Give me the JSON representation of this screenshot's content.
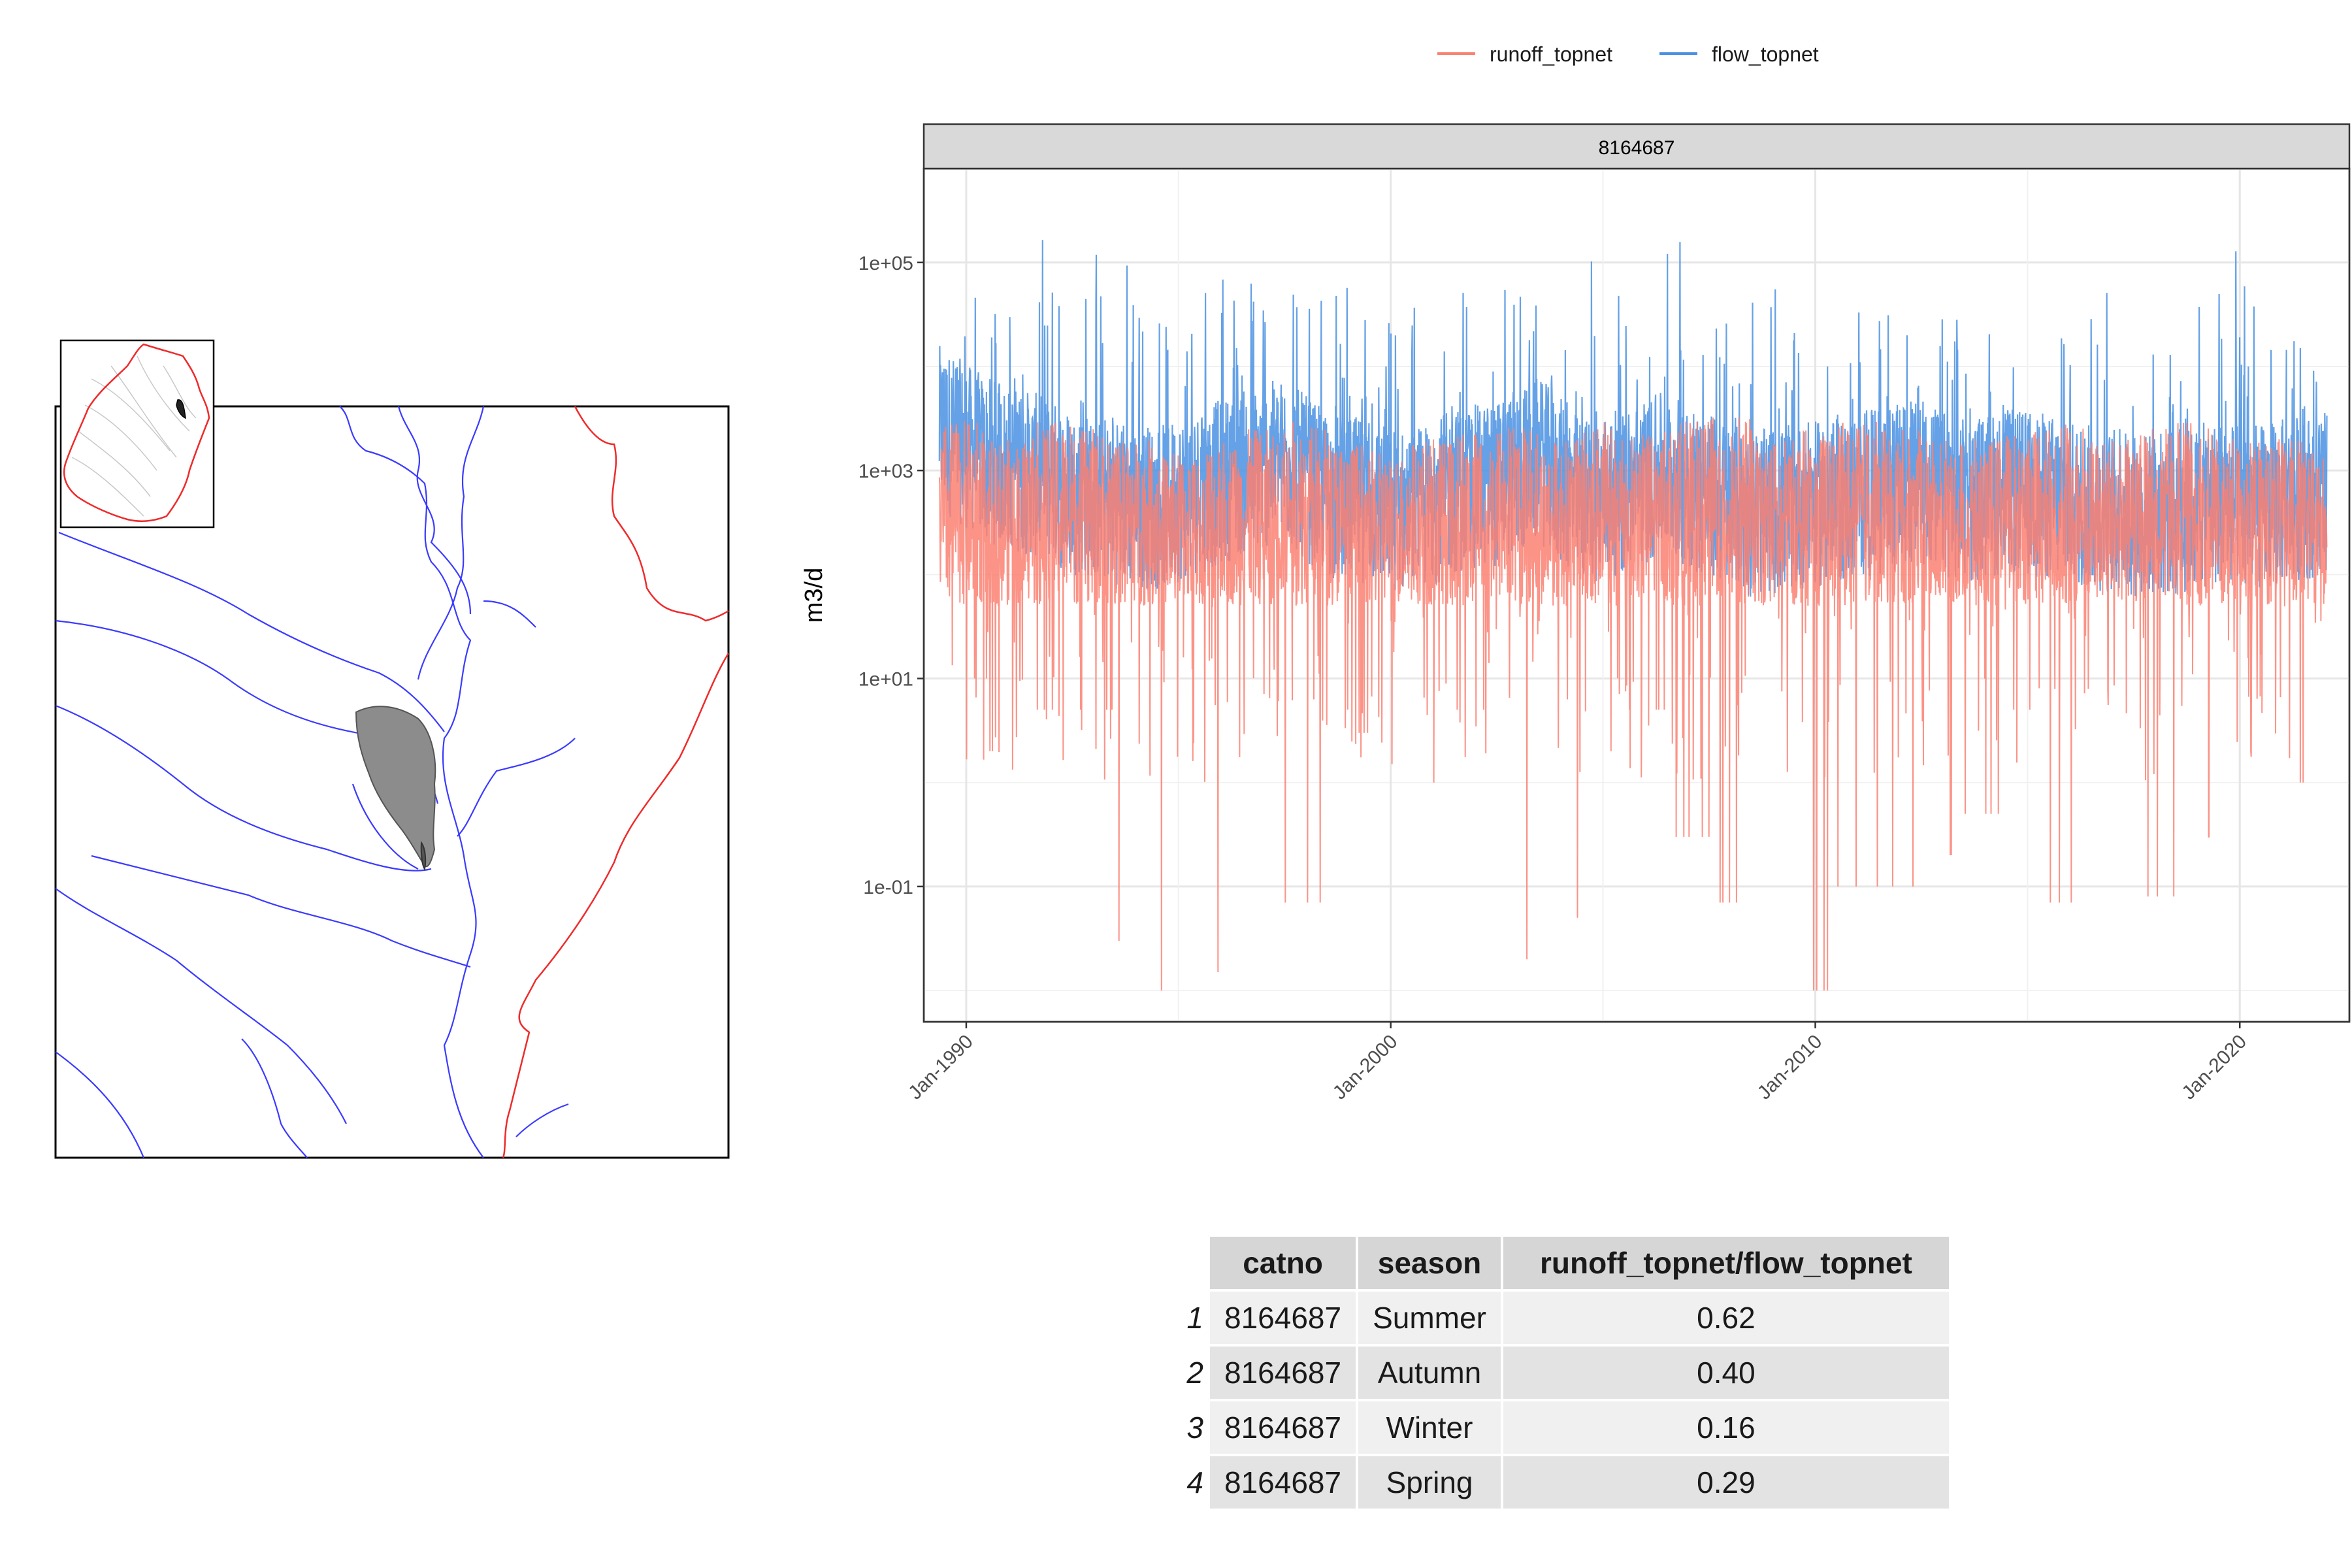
{
  "legend": {
    "items": [
      {
        "label": "runoff_topnet",
        "color": "#FA8072"
      },
      {
        "label": "flow_topnet",
        "color": "#4A90E2"
      }
    ]
  },
  "chart_data": {
    "type": "line",
    "panel_title": "8164687",
    "ylabel": "m3/d",
    "xlabel": "",
    "y_scale": "log10",
    "ylim": [
      0.005,
      800000
    ],
    "yticks": [
      {
        "value": 0.1,
        "label": "1e-01"
      },
      {
        "value": 10,
        "label": "1e+01"
      },
      {
        "value": 1000,
        "label": "1e+03"
      },
      {
        "value": 100000,
        "label": "1e+05"
      }
    ],
    "x_range": [
      "1989-01-01",
      "2022-08-01"
    ],
    "xticks": [
      {
        "value": "1990-01-01",
        "label": "Jan-1990"
      },
      {
        "value": "2000-01-01",
        "label": "Jan-2000"
      },
      {
        "value": "2010-01-01",
        "label": "Jan-2010"
      },
      {
        "value": "2020-01-01",
        "label": "Jan-2020"
      }
    ],
    "grid": true,
    "legend_position": "top",
    "series": [
      {
        "name": "flow_topnet",
        "color": "#4A90E2",
        "x": [
          "1989-06-01",
          "1990-07-01",
          "1991-07-01",
          "1992-07-01",
          "1993-07-01",
          "1994-07-01",
          "1995-07-01",
          "1996-07-01",
          "1997-07-01",
          "1998-07-01",
          "1999-07-01",
          "2000-07-01",
          "2001-07-01",
          "2002-07-01",
          "2003-07-01",
          "2004-07-01",
          "2005-07-01",
          "2006-07-01",
          "2007-07-01",
          "2008-07-01",
          "2009-07-01",
          "2010-07-01",
          "2011-07-01",
          "2012-07-01",
          "2013-07-01",
          "2014-07-01",
          "2015-07-01",
          "2016-07-01",
          "2017-07-01",
          "2018-07-01",
          "2019-07-01",
          "2020-07-01",
          "2021-07-01"
        ],
        "peak": [
          60000,
          80000,
          200000,
          150000,
          130000,
          50000,
          100000,
          80000,
          110000,
          60000,
          30000,
          50000,
          80000,
          90000,
          30000,
          150000,
          120000,
          170000,
          130000,
          70000,
          50000,
          90000,
          80000,
          30000,
          60000,
          40000,
          70000,
          60000,
          130000,
          110000,
          140000,
          40000,
          10000
        ],
        "trough": [
          400,
          200,
          150,
          100,
          80,
          70,
          100,
          150,
          200,
          90,
          80,
          60,
          100,
          120,
          200,
          80,
          100,
          150,
          90,
          60,
          70,
          80,
          100,
          120,
          80,
          100,
          90,
          70,
          60,
          60,
          80,
          70,
          90
        ]
      },
      {
        "name": "runoff_topnet",
        "color": "#FA8072",
        "x": [
          "1989-06-01",
          "1990-07-01",
          "1991-07-01",
          "1992-07-01",
          "1993-07-01",
          "1994-07-01",
          "1995-07-01",
          "1996-07-01",
          "1997-07-01",
          "1998-07-01",
          "1999-07-01",
          "2000-07-01",
          "2001-07-01",
          "2002-07-01",
          "2003-07-01",
          "2004-07-01",
          "2005-07-01",
          "2006-07-01",
          "2007-07-01",
          "2008-07-01",
          "2009-07-01",
          "2010-07-01",
          "2011-07-01",
          "2012-07-01",
          "2013-07-01",
          "2014-07-01",
          "2015-07-01",
          "2016-07-01",
          "2017-07-01",
          "2018-07-01",
          "2019-07-01",
          "2020-07-01",
          "2021-07-01"
        ],
        "peak": [
          3000,
          2000,
          3000,
          2500,
          2000,
          1500,
          2000,
          2500,
          3000,
          2000,
          1500,
          2000,
          2500,
          3000,
          2000,
          3000,
          2500,
          3000,
          3500,
          2000,
          2500,
          3000,
          2500,
          2000,
          2000,
          2500,
          3000,
          2000,
          2500,
          3000,
          2000,
          2000,
          1500
        ],
        "low": [
          10,
          2,
          5,
          5,
          0.03,
          0.01,
          0.015,
          0.5,
          0.07,
          3,
          5,
          1,
          5,
          0.02,
          0.05,
          2,
          5,
          0.3,
          0.07,
          0.2,
          0.01,
          0.1,
          0.1,
          0.2,
          0.5,
          5,
          0.07,
          0.1,
          0.08,
          0.3,
          2,
          1,
          0.05
        ]
      }
    ]
  },
  "map": {
    "main_region_label": "",
    "colors": {
      "rivers": "#3b3bff",
      "boundary": "#ee2b2b",
      "catchment": "#8c8c8c"
    }
  },
  "table": {
    "columns": [
      "catno",
      "season",
      "runoff_topnet/flow_topnet"
    ],
    "rows": [
      {
        "index": "1",
        "catno": "8164687",
        "season": "Summer",
        "ratio": "0.62"
      },
      {
        "index": "2",
        "catno": "8164687",
        "season": "Autumn",
        "ratio": "0.40"
      },
      {
        "index": "3",
        "catno": "8164687",
        "season": "Winter",
        "ratio": "0.16"
      },
      {
        "index": "4",
        "catno": "8164687",
        "season": "Spring",
        "ratio": "0.29"
      }
    ]
  }
}
